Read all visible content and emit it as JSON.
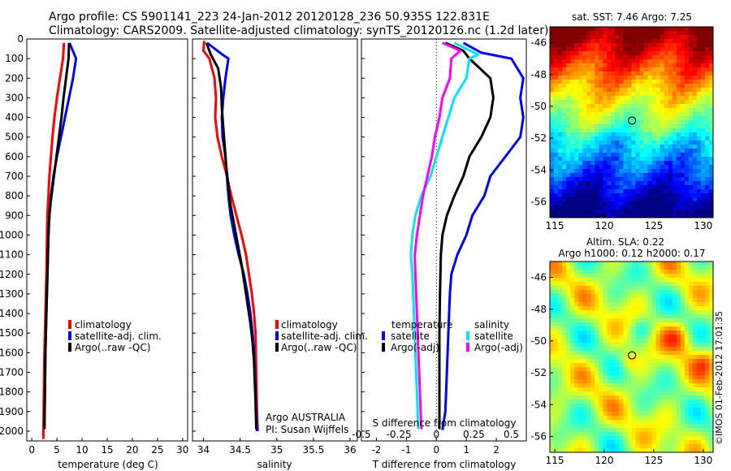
{
  "header": {
    "line1": "Argo profile: CS 5901141_223 24-Jan-2012 20120128_236 50.935S 122.831E",
    "line2": "Climatology: CARS2009. Satellite-adjusted climatology: synTS_20120126.nc (1.2d later)"
  },
  "colors": {
    "red": "#ff0000",
    "blue": "#0000ff",
    "black": "#000000",
    "cyan": "#00e5ee",
    "magenta": "#ff00ff"
  },
  "chart_data": [
    {
      "type": "line",
      "xlabel": "temperature (deg C)",
      "xlim": [
        -1,
        31
      ],
      "ylim": [
        2050,
        0
      ],
      "xticks": [
        "0",
        "5",
        "10",
        "15",
        "20",
        "25",
        "30"
      ],
      "yticks": [
        "0",
        "100",
        "200",
        "300",
        "400",
        "500",
        "600",
        "700",
        "800",
        "900",
        "1000",
        "1100",
        "1200",
        "1300",
        "1400",
        "1500",
        "1600",
        "1700",
        "1800",
        "1900",
        "2000"
      ],
      "legend": [
        "climatology",
        "satellite-adj. clim.",
        "Argo(..raw -QC)"
      ],
      "series": [
        {
          "name": "climatology",
          "color": "red",
          "points": [
            [
              6.4,
              20
            ],
            [
              6.2,
              100
            ],
            [
              5.6,
              200
            ],
            [
              5.0,
              300
            ],
            [
              4.5,
              400
            ],
            [
              4.1,
              500
            ],
            [
              3.8,
              600
            ],
            [
              3.5,
              700
            ],
            [
              3.3,
              800
            ],
            [
              3.1,
              900
            ],
            [
              3.0,
              1000
            ],
            [
              2.9,
              1200
            ],
            [
              2.7,
              1400
            ],
            [
              2.5,
              1600
            ],
            [
              2.4,
              1800
            ],
            [
              2.3,
              2000
            ],
            [
              2.3,
              2040
            ]
          ]
        },
        {
          "name": "satellite-adj. clim.",
          "color": "blue",
          "points": [
            [
              7.5,
              20
            ],
            [
              8.8,
              100
            ],
            [
              8.2,
              200
            ],
            [
              7.4,
              300
            ],
            [
              6.6,
              400
            ],
            [
              5.8,
              500
            ],
            [
              5.0,
              600
            ],
            [
              4.3,
              700
            ],
            [
              3.8,
              800
            ],
            [
              3.5,
              900
            ],
            [
              3.3,
              1000
            ],
            [
              3.1,
              1200
            ],
            [
              2.9,
              1400
            ],
            [
              2.7,
              1600
            ],
            [
              2.6,
              1800
            ],
            [
              2.5,
              1990
            ]
          ]
        },
        {
          "name": "Argo(..raw -QC)",
          "color": "black",
          "points": [
            [
              7.4,
              20
            ],
            [
              7.3,
              100
            ],
            [
              6.8,
              200
            ],
            [
              6.3,
              300
            ],
            [
              5.9,
              400
            ],
            [
              5.4,
              500
            ],
            [
              4.9,
              600
            ],
            [
              4.4,
              700
            ],
            [
              3.9,
              800
            ],
            [
              3.5,
              900
            ],
            [
              3.3,
              1000
            ],
            [
              3.1,
              1200
            ],
            [
              2.9,
              1400
            ],
            [
              2.7,
              1600
            ],
            [
              2.6,
              1800
            ],
            [
              2.5,
              1990
            ]
          ]
        }
      ]
    },
    {
      "type": "line",
      "xlabel": "salinity",
      "xlim": [
        33.85,
        36.1
      ],
      "ylim": [
        2050,
        0
      ],
      "xticks": [
        "34",
        "34.5",
        "35",
        "35.5",
        "36"
      ],
      "legend": [
        "climatology",
        "satellite-adj. clim.",
        "Argo(..raw -QC)"
      ],
      "series": [
        {
          "name": "climatology",
          "color": "red",
          "points": [
            [
              34.01,
              10
            ],
            [
              34.0,
              60
            ],
            [
              34.08,
              100
            ],
            [
              34.15,
              200
            ],
            [
              34.17,
              300
            ],
            [
              34.16,
              400
            ],
            [
              34.19,
              500
            ],
            [
              34.25,
              600
            ],
            [
              34.32,
              700
            ],
            [
              34.38,
              800
            ],
            [
              34.45,
              900
            ],
            [
              34.52,
              1000
            ],
            [
              34.58,
              1100
            ],
            [
              34.62,
              1200
            ],
            [
              34.66,
              1300
            ],
            [
              34.69,
              1400
            ],
            [
              34.71,
              1500
            ],
            [
              34.72,
              1700
            ],
            [
              34.73,
              1900
            ],
            [
              34.74,
              2000
            ]
          ]
        },
        {
          "name": "satellite-adj. clim.",
          "color": "blue",
          "points": [
            [
              34.05,
              20
            ],
            [
              34.26,
              80
            ],
            [
              34.34,
              100
            ],
            [
              34.3,
              200
            ],
            [
              34.27,
              300
            ],
            [
              34.25,
              400
            ],
            [
              34.26,
              500
            ],
            [
              34.3,
              600
            ],
            [
              34.32,
              700
            ],
            [
              34.34,
              800
            ],
            [
              34.37,
              900
            ],
            [
              34.42,
              1000
            ],
            [
              34.48,
              1100
            ],
            [
              34.55,
              1200
            ],
            [
              34.6,
              1300
            ],
            [
              34.64,
              1400
            ],
            [
              34.67,
              1500
            ],
            [
              34.69,
              1600
            ],
            [
              34.7,
              1700
            ],
            [
              34.71,
              1800
            ],
            [
              34.72,
              1900
            ],
            [
              34.73,
              2000
            ]
          ]
        },
        {
          "name": "Argo(..raw -QC)",
          "color": "black",
          "points": [
            [
              34.04,
              20
            ],
            [
              34.1,
              80
            ],
            [
              34.2,
              150
            ],
            [
              34.24,
              250
            ],
            [
              34.25,
              350
            ],
            [
              34.27,
              450
            ],
            [
              34.29,
              550
            ],
            [
              34.31,
              650
            ],
            [
              34.34,
              750
            ],
            [
              34.37,
              850
            ],
            [
              34.42,
              950
            ],
            [
              34.47,
              1050
            ],
            [
              34.52,
              1150
            ],
            [
              34.56,
              1250
            ],
            [
              34.6,
              1350
            ],
            [
              34.64,
              1450
            ],
            [
              34.67,
              1550
            ],
            [
              34.69,
              1650
            ],
            [
              34.7,
              1750
            ],
            [
              34.71,
              1850
            ],
            [
              34.72,
              1990
            ]
          ]
        }
      ]
    },
    {
      "type": "line",
      "xlabel": "T difference from climatology",
      "xlabel_top": "S difference from climatology",
      "xlim": [
        -2.5,
        3.0
      ],
      "ylim": [
        2050,
        0
      ],
      "xticks": [
        "-2",
        "-1",
        "0",
        "1",
        "2"
      ],
      "sticks": [
        "-0.5",
        "-0.25",
        "0",
        "0.25",
        "0.5"
      ],
      "legend": {
        "temperature": "temperature",
        "salinity": "salinity",
        "items": [
          "satellite",
          "Argo(-adj)",
          "satellite",
          "Argo(-adj)"
        ]
      },
      "series": [
        {
          "name": "satellite",
          "group": "temperature",
          "color": "blue",
          "points": [
            [
              0.9,
              20
            ],
            [
              1.5,
              70
            ],
            [
              2.5,
              100
            ],
            [
              2.9,
              200
            ],
            [
              2.8,
              300
            ],
            [
              2.9,
              400
            ],
            [
              2.8,
              500
            ],
            [
              2.3,
              600
            ],
            [
              1.8,
              700
            ],
            [
              1.6,
              800
            ],
            [
              1.2,
              900
            ],
            [
              1.0,
              1000
            ],
            [
              0.7,
              1100
            ],
            [
              0.5,
              1200
            ],
            [
              0.45,
              1300
            ],
            [
              0.4,
              1500
            ],
            [
              0.35,
              1700
            ],
            [
              0.3,
              1900
            ],
            [
              0.2,
              1995
            ]
          ]
        },
        {
          "name": "Argo(-adj)",
          "group": "temperature",
          "color": "black",
          "points": [
            [
              0.3,
              20
            ],
            [
              0.9,
              60
            ],
            [
              1.1,
              100
            ],
            [
              1.8,
              200
            ],
            [
              1.9,
              300
            ],
            [
              1.8,
              400
            ],
            [
              1.5,
              500
            ],
            [
              1.1,
              600
            ],
            [
              0.9,
              700
            ],
            [
              0.6,
              800
            ],
            [
              0.35,
              900
            ],
            [
              0.2,
              1000
            ],
            [
              0.15,
              1100
            ],
            [
              0.12,
              1300
            ],
            [
              0.1,
              1500
            ],
            [
              0.1,
              1800
            ],
            [
              0.1,
              1990
            ]
          ]
        },
        {
          "name": "satellite",
          "group": "salinity",
          "color": "cyan",
          "points": [
            [
              0.6,
              20
            ],
            [
              1.4,
              80
            ],
            [
              1.1,
              100
            ],
            [
              1.0,
              200
            ],
            [
              0.6,
              300
            ],
            [
              0.4,
              400
            ],
            [
              0.2,
              500
            ],
            [
              0.0,
              600
            ],
            [
              -0.2,
              700
            ],
            [
              -0.5,
              800
            ],
            [
              -0.7,
              900
            ],
            [
              -0.8,
              1000
            ],
            [
              -0.85,
              1100
            ],
            [
              -0.8,
              1200
            ],
            [
              -0.75,
              1400
            ],
            [
              -0.7,
              1600
            ],
            [
              -0.65,
              1800
            ],
            [
              -0.6,
              1990
            ]
          ]
        },
        {
          "name": "Argo(-adj)",
          "group": "salinity",
          "color": "magenta",
          "points": [
            [
              0.2,
              20
            ],
            [
              0.8,
              60
            ],
            [
              0.5,
              100
            ],
            [
              0.45,
              200
            ],
            [
              0.2,
              300
            ],
            [
              0.1,
              400
            ],
            [
              -0.05,
              500
            ],
            [
              -0.15,
              600
            ],
            [
              -0.3,
              700
            ],
            [
              -0.45,
              800
            ],
            [
              -0.55,
              900
            ],
            [
              -0.65,
              1000
            ],
            [
              -0.72,
              1100
            ],
            [
              -0.7,
              1200
            ],
            [
              -0.65,
              1400
            ],
            [
              -0.6,
              1600
            ],
            [
              -0.55,
              1800
            ],
            [
              -0.5,
              1990
            ]
          ]
        }
      ]
    },
    {
      "type": "heatmap",
      "title": "sat. SST: 7.46 Argo: 7.25",
      "xlim": [
        114.5,
        131
      ],
      "ylim": [
        -57,
        -45
      ],
      "xticks": [
        "115",
        "120",
        "125",
        "130"
      ],
      "yticks": [
        "-46",
        "-48",
        "-50",
        "-52",
        "-54",
        "-56"
      ],
      "marker": [
        122.8,
        -50.9
      ]
    },
    {
      "type": "heatmap",
      "title": "Altim. SLA: 0.22",
      "subtitle": "Argo h1000: 0.12 h2000: 0.17",
      "xlim": [
        114.5,
        131
      ],
      "ylim": [
        -57,
        -45
      ],
      "xticks": [
        "115",
        "120",
        "125",
        "130"
      ],
      "yticks": [
        "-46",
        "-48",
        "-50",
        "-52",
        "-54",
        "-56"
      ],
      "marker": [
        122.8,
        -50.9
      ]
    }
  ],
  "footer": {
    "plot1_corner": "Argo AUSTRALIA",
    "plot2_corner": "PI: Susan Wijffels",
    "stamp": "©IMOS 01-Feb-2012 17:01:35"
  }
}
